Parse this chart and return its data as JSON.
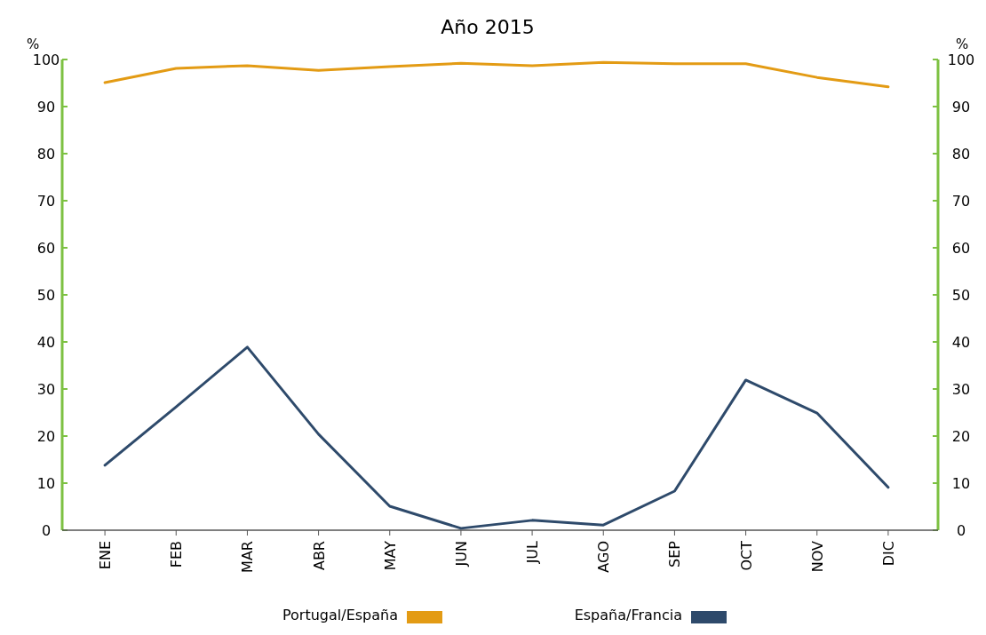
{
  "chart_data": {
    "type": "line",
    "title": "Año 2015",
    "ylabel": "%",
    "y2label": "%",
    "categories": [
      "ENE",
      "FEB",
      "MAR",
      "ABR",
      "MAY",
      "JUN",
      "JUL",
      "AGO",
      "SEP",
      "OCT",
      "NOV",
      "DIC"
    ],
    "series": [
      {
        "name": "Portugal/España",
        "color": "#e39b14",
        "values": [
          95.1,
          98.1,
          98.7,
          97.7,
          98.5,
          99.2,
          98.7,
          99.4,
          99.1,
          99.1,
          96.2,
          94.2
        ]
      },
      {
        "name": "España/Francia",
        "color": "#2e4a6b",
        "values": [
          13.8,
          26.2,
          38.9,
          20.4,
          5.1,
          0.4,
          2.1,
          1.1,
          8.3,
          31.9,
          24.9,
          9.1
        ]
      }
    ],
    "ylim": [
      0,
      100
    ],
    "yticks": [
      0,
      10,
      20,
      30,
      40,
      50,
      60,
      70,
      80,
      90,
      100
    ],
    "y2lim": [
      0,
      100
    ],
    "y2ticks": [
      0,
      10,
      20,
      30,
      40,
      50,
      60,
      70,
      80,
      90,
      100
    ],
    "grid": false,
    "legend": "bottom",
    "marker": "none",
    "line_style": "solid"
  }
}
